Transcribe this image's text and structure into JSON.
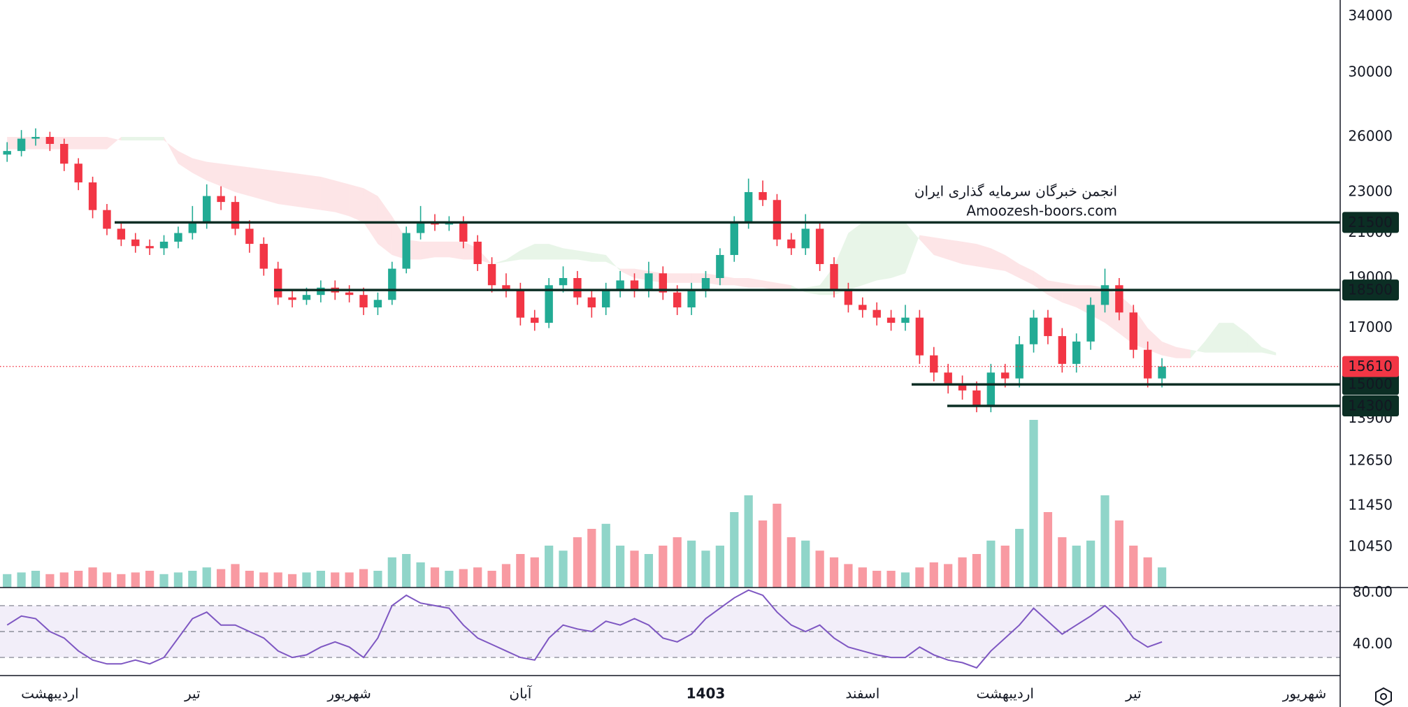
{
  "chart_data": [
    {
      "type": "candlestick",
      "categories": [
        null,
        null,
        null,
        "اردیبهشت",
        null,
        null,
        null,
        null,
        null,
        null,
        null,
        null,
        null,
        "تیر",
        null,
        null,
        null,
        null,
        null,
        null,
        null,
        null,
        null,
        null,
        "شهریور",
        null,
        null,
        null,
        null,
        null,
        null,
        null,
        null,
        null,
        null,
        null,
        "آبان",
        null,
        null,
        null,
        null,
        null,
        null,
        null,
        null,
        null,
        null,
        null,
        null,
        "1403",
        null,
        null,
        null,
        null,
        null,
        null,
        null,
        null,
        null,
        null,
        "اسفند",
        null,
        null,
        null,
        null,
        null,
        null,
        null,
        null,
        null,
        "اردیبهشت",
        null,
        null,
        null,
        null,
        null,
        null,
        null,
        null,
        "تیر",
        null,
        null,
        null,
        null,
        null,
        null,
        null,
        null,
        null,
        null,
        null,
        "شهریور",
        null,
        null
      ],
      "open": [
        25000,
        25200,
        25900,
        26000,
        25600,
        24500,
        23500,
        22100,
        21200,
        20700,
        20400,
        20300,
        20600,
        21000,
        21500,
        22800,
        22500,
        21200,
        20500,
        19400,
        18200,
        18100,
        18300,
        18600,
        18400,
        18300,
        17800,
        18100,
        19400,
        21000,
        21500,
        21400,
        21500,
        20600,
        19600,
        18700,
        18500,
        17400,
        17200,
        18700,
        19000,
        18200,
        17800,
        18500,
        18900,
        18500,
        19200,
        18400,
        17800,
        18500,
        19000,
        20000,
        21500,
        23000,
        22600,
        20700,
        20300,
        21200,
        19600,
        18500,
        17900,
        17700,
        17400,
        17200,
        17400,
        16000,
        15400,
        15000,
        14800,
        14300,
        15400,
        15200,
        16400,
        17400,
        16700,
        15700,
        16500,
        17900,
        18700,
        17600,
        16200,
        15200,
        null,
        null,
        null,
        null,
        null,
        null,
        null,
        null,
        null,
        null,
        null,
        null
      ],
      "high": [
        25700,
        26400,
        26500,
        26300,
        25900,
        24800,
        23800,
        22400,
        21500,
        21000,
        20700,
        20900,
        21300,
        22300,
        23400,
        23300,
        22800,
        21600,
        20800,
        19700,
        18500,
        18600,
        18900,
        18900,
        18700,
        18600,
        18400,
        19700,
        21300,
        22300,
        21900,
        21800,
        21800,
        20900,
        19900,
        19200,
        18800,
        17700,
        19000,
        19500,
        19300,
        18500,
        18800,
        19300,
        19200,
        19700,
        19500,
        18700,
        18800,
        19300,
        20300,
        21800,
        23700,
        23600,
        22900,
        21000,
        21900,
        21500,
        19900,
        18800,
        18200,
        18000,
        17700,
        17900,
        17700,
        16300,
        15700,
        15300,
        15100,
        15700,
        15700,
        16700,
        17700,
        17700,
        17000,
        16800,
        18200,
        19400,
        19000,
        17900,
        16500,
        15900,
        null,
        null,
        null,
        null,
        null,
        null,
        null,
        null,
        null,
        null,
        null,
        null
      ],
      "low": [
        24600,
        24900,
        25500,
        25200,
        24100,
        23100,
        21700,
        20900,
        20400,
        20100,
        20000,
        20000,
        20300,
        20700,
        21200,
        22100,
        20900,
        20100,
        19100,
        17900,
        17800,
        17900,
        18000,
        18100,
        18000,
        17500,
        17500,
        17900,
        19200,
        20700,
        21100,
        21100,
        20300,
        19300,
        18400,
        18200,
        17100,
        16900,
        17000,
        18400,
        17900,
        17400,
        17500,
        18200,
        18200,
        18200,
        18100,
        17500,
        17500,
        18200,
        18700,
        19700,
        21200,
        22300,
        20400,
        20000,
        20000,
        19300,
        18200,
        17600,
        17400,
        17100,
        16900,
        16900,
        15700,
        15100,
        14700,
        14500,
        14100,
        14100,
        14900,
        14900,
        16100,
        16400,
        15400,
        15400,
        16200,
        17600,
        17300,
        15900,
        14900,
        14900,
        null,
        null,
        null,
        null,
        null,
        null,
        null,
        null,
        null,
        null,
        null,
        null
      ],
      "close": [
        25200,
        25900,
        26000,
        25600,
        24500,
        23500,
        22100,
        21200,
        20700,
        20400,
        20300,
        20600,
        21000,
        21500,
        22800,
        22500,
        21200,
        20500,
        19400,
        18200,
        18100,
        18300,
        18600,
        18400,
        18300,
        17800,
        18100,
        19400,
        21000,
        21500,
        21400,
        21500,
        20600,
        19600,
        18700,
        18500,
        17400,
        17200,
        18700,
        19000,
        18200,
        17800,
        18500,
        18900,
        18500,
        19200,
        18400,
        17800,
        18500,
        19000,
        20000,
        21500,
        23000,
        22600,
        20700,
        20300,
        21200,
        19600,
        18500,
        17900,
        17700,
        17400,
        17200,
        17400,
        16000,
        15400,
        15000,
        14800,
        14300,
        15400,
        15200,
        16400,
        17400,
        16700,
        15700,
        16500,
        17900,
        18700,
        17600,
        16200,
        15200,
        15610,
        null,
        null,
        null,
        null,
        null,
        null,
        null,
        null,
        null,
        null,
        null,
        null
      ],
      "volume": [
        8,
        9,
        10,
        8,
        9,
        10,
        12,
        9,
        8,
        9,
        10,
        8,
        9,
        10,
        12,
        11,
        14,
        10,
        9,
        9,
        8,
        9,
        10,
        9,
        9,
        11,
        10,
        18,
        20,
        15,
        12,
        10,
        11,
        12,
        10,
        14,
        20,
        18,
        25,
        22,
        30,
        35,
        38,
        25,
        22,
        20,
        25,
        30,
        28,
        22,
        25,
        45,
        55,
        40,
        50,
        30,
        28,
        22,
        18,
        14,
        12,
        10,
        10,
        9,
        12,
        15,
        14,
        18,
        20,
        28,
        25,
        35,
        100,
        45,
        30,
        25,
        28,
        55,
        40,
        25,
        18,
        12,
        null,
        null,
        null,
        null,
        null,
        null,
        null,
        null,
        null,
        null,
        null,
        null
      ],
      "span_a": [
        25300,
        25300,
        25300,
        25300,
        25300,
        25300,
        25300,
        25300,
        26000,
        26000,
        26000,
        26000,
        24500,
        24000,
        23600,
        23300,
        23000,
        22800,
        22600,
        22400,
        22300,
        22200,
        22100,
        22000,
        21800,
        21500,
        20500,
        20000,
        19800,
        19800,
        19900,
        19900,
        19800,
        19800,
        19600,
        19800,
        20200,
        20500,
        20500,
        20300,
        20200,
        20100,
        20000,
        19300,
        19000,
        18900,
        18800,
        18800,
        18800,
        18800,
        18700,
        18700,
        18600,
        18600,
        18500,
        18500,
        18600,
        18700,
        19500,
        21000,
        21500,
        21500,
        21500,
        21500,
        20700,
        20000,
        19800,
        19600,
        19500,
        19400,
        19300,
        19000,
        18700,
        18300,
        18000,
        17800,
        17500,
        17200,
        16800,
        16400,
        16200,
        16000,
        15900,
        15900,
        16500,
        17200,
        17200,
        16800,
        16300,
        16100,
        null,
        null,
        null,
        null
      ],
      "span_b": [
        26000,
        26000,
        26000,
        26000,
        26000,
        26000,
        26000,
        26000,
        25800,
        25800,
        25800,
        25800,
        25200,
        24800,
        24600,
        24500,
        24400,
        24300,
        24200,
        24100,
        24000,
        23900,
        23800,
        23600,
        23400,
        23200,
        22800,
        21800,
        20700,
        20600,
        20600,
        20600,
        20600,
        20300,
        19600,
        19700,
        19800,
        19800,
        19800,
        19800,
        19800,
        19700,
        19700,
        19400,
        19400,
        19300,
        19200,
        19200,
        19200,
        19200,
        19100,
        19000,
        19000,
        18900,
        18800,
        18700,
        18400,
        18300,
        18300,
        18500,
        18700,
        18900,
        19000,
        19200,
        20900,
        20800,
        20700,
        20600,
        20500,
        20300,
        20000,
        19600,
        19300,
        18900,
        18800,
        18700,
        18700,
        18600,
        18300,
        17800,
        17000,
        16500,
        16300,
        16200,
        16100,
        16100,
        16100,
        16100,
        16100,
        16000,
        null,
        null,
        null,
        null
      ],
      "up_color": "#22ab94",
      "down_color": "#f23645",
      "cloud_up_color": "#4caf50",
      "cloud_down_color": "#f23645",
      "ylim": [
        9550,
        35250
      ],
      "yticks": [
        10450,
        11450,
        12650,
        13900,
        17000,
        19000,
        21000,
        23000,
        26000,
        30000,
        34000
      ],
      "log_scale": true,
      "grid": false,
      "levels": [
        21500,
        18500,
        15000,
        14300
      ],
      "level_color": "#0b2e24",
      "watermark": [
        "انجمن خبرگان سرمایه گذاری ایران",
        "Amoozesh-boors.com"
      ]
    },
    {
      "type": "line",
      "values": [
        55,
        62,
        60,
        50,
        45,
        35,
        28,
        25,
        25,
        28,
        25,
        30,
        45,
        60,
        65,
        55,
        55,
        50,
        45,
        35,
        30,
        32,
        38,
        42,
        38,
        30,
        45,
        70,
        78,
        72,
        70,
        68,
        55,
        45,
        40,
        35,
        30,
        28,
        45,
        55,
        52,
        50,
        58,
        55,
        60,
        55,
        45,
        42,
        48,
        60,
        68,
        76,
        82,
        78,
        65,
        55,
        50,
        55,
        45,
        38,
        35,
        32,
        30,
        30,
        38,
        32,
        28,
        26,
        22,
        35,
        45,
        55,
        68,
        58,
        48,
        55,
        62,
        70,
        60,
        45,
        38,
        42,
        null,
        null,
        null,
        null,
        null,
        null,
        null,
        null,
        null,
        null,
        null,
        null
      ],
      "color": "#7e57c2",
      "ylim": [
        16,
        84
      ],
      "yticks": [
        {
          "value": 80,
          "label": "80.00"
        },
        {
          "value": 40,
          "label": "40.00"
        }
      ],
      "levels": [
        30,
        50,
        70
      ],
      "band": [
        30,
        70
      ],
      "band_color": "#7e57c2"
    }
  ]
}
